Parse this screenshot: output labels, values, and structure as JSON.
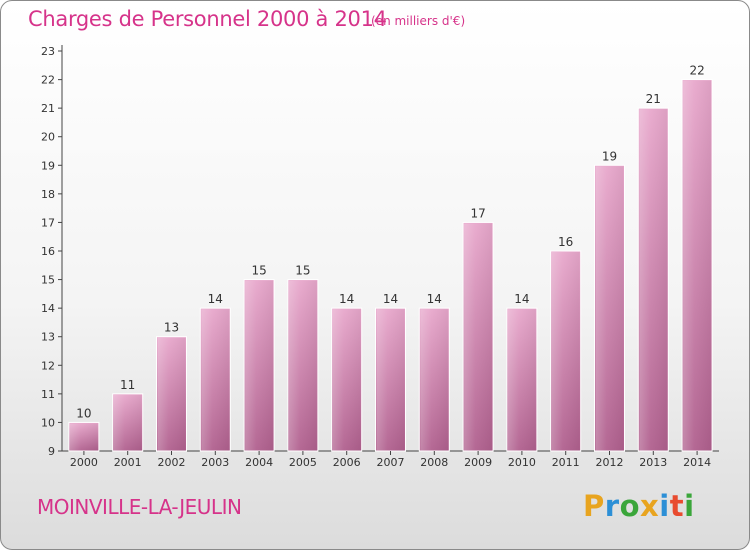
{
  "header": {
    "title": "Charges de Personnel 2000 à 2014",
    "subtitle": "(en milliers d'€)"
  },
  "footer": {
    "commune": "MOINVILLE-LA-JEULIN",
    "logo_letters": [
      "P",
      "r",
      "o",
      "x",
      "i",
      "t",
      "i"
    ],
    "logo_colors": [
      "#e8a41f",
      "#2c8fd6",
      "#3aa63a",
      "#e8a41f",
      "#2c8fd6",
      "#e84b2f",
      "#3aa63a"
    ]
  },
  "chart_data": {
    "type": "bar",
    "categories": [
      "2000",
      "2001",
      "2002",
      "2003",
      "2004",
      "2005",
      "2006",
      "2007",
      "2008",
      "2009",
      "2010",
      "2011",
      "2012",
      "2013",
      "2014"
    ],
    "values": [
      10,
      11,
      13,
      14,
      15,
      15,
      14,
      14,
      14,
      17,
      14,
      16,
      19,
      21,
      22
    ],
    "title": "Charges de Personnel 2000 à 2014",
    "subtitle": "(en milliers d'€)",
    "ylim": [
      9,
      23
    ],
    "yticks": [
      9,
      10,
      11,
      12,
      13,
      14,
      15,
      16,
      17,
      18,
      19,
      20,
      21,
      22,
      23
    ],
    "grid": false,
    "bar_color": "#d884b4"
  }
}
